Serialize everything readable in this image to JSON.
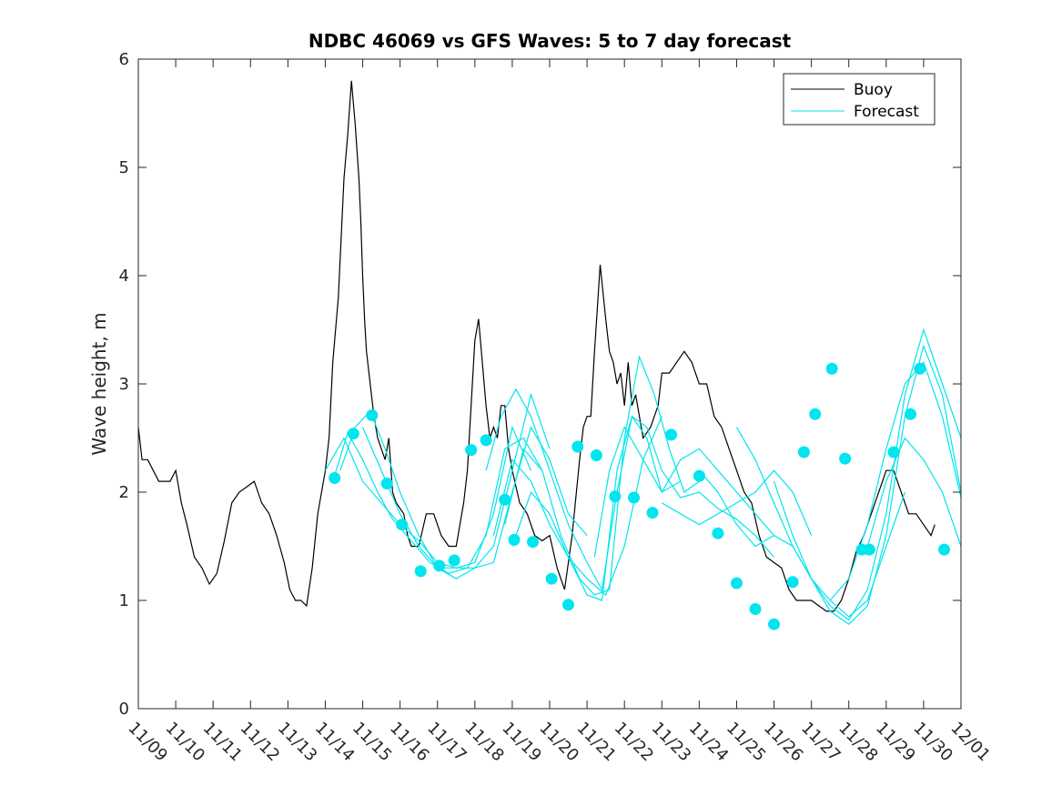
{
  "chart_data": {
    "type": "line",
    "title": "NDBC 46069 vs GFS Waves: 5 to 7 day forecast",
    "xlabel": "",
    "ylabel": "Wave height, m",
    "xlim": [
      0,
      22
    ],
    "ylim": [
      0,
      6
    ],
    "yticks": [
      0,
      1,
      2,
      3,
      4,
      5,
      6
    ],
    "xtick_labels": [
      "11/09",
      "11/10",
      "11/11",
      "11/12",
      "11/13",
      "11/14",
      "11/15",
      "11/16",
      "11/17",
      "11/18",
      "11/19",
      "11/20",
      "11/21",
      "11/22",
      "11/23",
      "11/24",
      "11/25",
      "11/26",
      "11/27",
      "11/28",
      "11/29",
      "11/30",
      "12/01"
    ],
    "legend": {
      "position": "top-right",
      "entries": [
        "Buoy",
        "Forecast"
      ]
    },
    "colors": {
      "buoy": "#000000",
      "forecast": "#00e5ee",
      "axis": "#262626"
    },
    "buoy": {
      "name": "Buoy",
      "x": [
        0,
        0.1,
        0.25,
        0.4,
        0.55,
        0.7,
        0.85,
        1.0,
        1.15,
        1.3,
        1.5,
        1.7,
        1.9,
        2.1,
        2.3,
        2.5,
        2.7,
        2.9,
        3.1,
        3.3,
        3.5,
        3.7,
        3.9,
        4.05,
        4.2,
        4.35,
        4.5,
        4.65,
        4.8,
        5.0,
        5.1,
        5.2,
        5.35,
        5.5,
        5.6,
        5.7,
        5.8,
        5.9,
        5.95,
        6.0,
        6.05,
        6.1,
        6.2,
        6.3,
        6.4,
        6.5,
        6.6,
        6.7,
        6.8,
        6.9,
        7.0,
        7.1,
        7.2,
        7.3,
        7.5,
        7.7,
        7.9,
        8.1,
        8.3,
        8.5,
        8.7,
        8.8,
        8.9,
        9.0,
        9.1,
        9.2,
        9.3,
        9.4,
        9.5,
        9.6,
        9.7,
        9.8,
        9.9,
        10.0,
        10.2,
        10.4,
        10.6,
        10.8,
        11.0,
        11.2,
        11.4,
        11.6,
        11.8,
        11.9,
        12.0,
        12.1,
        12.2,
        12.35,
        12.5,
        12.6,
        12.7,
        12.8,
        12.9,
        13.0,
        13.1,
        13.2,
        13.3,
        13.5,
        13.7,
        13.9,
        14.0,
        14.2,
        14.4,
        14.6,
        14.8,
        15.0,
        15.2,
        15.4,
        15.6,
        15.8,
        16.0,
        16.2,
        16.4,
        16.6,
        16.8,
        17.0,
        17.2,
        17.4,
        17.6,
        17.8,
        18.0,
        18.2,
        18.4,
        18.6,
        18.8,
        19.0,
        19.2,
        19.4,
        19.6,
        19.8,
        20.0,
        20.2,
        20.4,
        20.6,
        20.8,
        21.0,
        21.1,
        21.2,
        21.3
      ],
      "y": [
        2.6,
        2.3,
        2.3,
        2.2,
        2.1,
        2.1,
        2.1,
        2.2,
        1.9,
        1.7,
        1.4,
        1.3,
        1.15,
        1.25,
        1.55,
        1.9,
        2.0,
        2.05,
        2.1,
        1.9,
        1.8,
        1.6,
        1.35,
        1.1,
        1.0,
        1.0,
        0.95,
        1.3,
        1.8,
        2.2,
        2.5,
        3.2,
        3.8,
        4.9,
        5.3,
        5.8,
        5.4,
        4.9,
        4.5,
        4.0,
        3.6,
        3.3,
        3.0,
        2.7,
        2.5,
        2.4,
        2.3,
        2.5,
        2.0,
        1.9,
        1.85,
        1.8,
        1.6,
        1.5,
        1.5,
        1.8,
        1.8,
        1.6,
        1.5,
        1.5,
        1.9,
        2.2,
        2.8,
        3.4,
        3.6,
        3.2,
        2.8,
        2.5,
        2.6,
        2.5,
        2.8,
        2.8,
        2.4,
        2.2,
        1.9,
        1.8,
        1.6,
        1.55,
        1.6,
        1.3,
        1.1,
        1.6,
        2.3,
        2.6,
        2.7,
        2.7,
        3.3,
        4.1,
        3.6,
        3.3,
        3.2,
        3.0,
        3.1,
        2.8,
        3.2,
        2.8,
        2.9,
        2.5,
        2.6,
        2.8,
        3.1,
        3.1,
        3.2,
        3.3,
        3.2,
        3.0,
        3.0,
        2.7,
        2.6,
        2.4,
        2.2,
        2.0,
        1.9,
        1.6,
        1.4,
        1.35,
        1.3,
        1.1,
        1.0,
        1.0,
        1.0,
        0.95,
        0.9,
        0.9,
        1.0,
        1.2,
        1.45,
        1.6,
        1.8,
        2.0,
        2.2,
        2.2,
        2.0,
        1.8,
        1.8,
        1.7,
        1.65,
        1.6,
        1.7
      ]
    },
    "forecast_series": [
      {
        "name": "Forecast 1",
        "x": [
          5.0,
          5.5,
          6.0,
          6.5,
          7.0,
          7.5,
          8.0,
          8.5,
          9.0,
          9.5,
          10.0,
          10.5
        ],
        "y": [
          2.2,
          2.5,
          2.1,
          1.9,
          1.7,
          1.55,
          1.35,
          1.3,
          1.35,
          1.8,
          2.6,
          2.2
        ]
      },
      {
        "name": "Forecast 2",
        "x": [
          5.2,
          5.6,
          6.0,
          6.4,
          6.8,
          7.3,
          7.8,
          8.3,
          8.8,
          9.3,
          9.8,
          10.3,
          10.8
        ],
        "y": [
          2.1,
          2.55,
          2.3,
          2.0,
          1.75,
          1.55,
          1.35,
          1.25,
          1.3,
          1.6,
          2.4,
          2.5,
          2.2
        ]
      },
      {
        "name": "Forecast 3",
        "x": [
          5.4,
          5.8,
          6.2,
          6.6,
          7.0,
          7.5,
          8.0,
          8.5,
          9.0,
          9.5,
          10.0,
          10.5,
          11.0
        ],
        "y": [
          2.2,
          2.6,
          2.75,
          2.4,
          2.0,
          1.6,
          1.3,
          1.2,
          1.3,
          1.5,
          2.2,
          2.9,
          2.4
        ]
      },
      {
        "name": "Forecast 4",
        "x": [
          6.0,
          6.5,
          7.0,
          7.5,
          8.0,
          8.5,
          9.0,
          9.5,
          10.0,
          10.5,
          11.0,
          11.5,
          12.0
        ],
        "y": [
          2.6,
          2.2,
          1.8,
          1.5,
          1.3,
          1.3,
          1.3,
          1.35,
          2.0,
          2.6,
          2.3,
          1.8,
          1.6
        ]
      },
      {
        "name": "Forecast 5",
        "x": [
          9.3,
          9.7,
          10.1,
          10.5,
          11.0,
          11.5,
          12.0,
          12.4,
          12.8,
          13.2,
          13.6,
          14.0,
          14.5
        ],
        "y": [
          2.2,
          2.7,
          2.95,
          2.7,
          2.2,
          1.7,
          1.35,
          1.1,
          2.0,
          2.7,
          2.5,
          2.0,
          2.1
        ]
      },
      {
        "name": "Forecast 6",
        "x": [
          9.5,
          10.0,
          10.5,
          11.0,
          11.5,
          12.0,
          12.5,
          13.0,
          13.5,
          14.0
        ],
        "y": [
          1.6,
          2.3,
          2.1,
          1.7,
          1.4,
          1.2,
          1.05,
          1.5,
          2.3,
          2.7
        ]
      },
      {
        "name": "Forecast 7",
        "x": [
          9.8,
          10.3,
          10.8,
          11.3,
          11.8,
          12.2,
          12.6,
          13.0,
          13.4,
          13.8,
          14.2,
          14.6,
          15.0
        ],
        "y": [
          1.7,
          2.4,
          2.2,
          1.6,
          1.2,
          1.05,
          1.1,
          2.5,
          3.25,
          2.9,
          2.4,
          2.0,
          2.1
        ]
      },
      {
        "name": "Forecast 8",
        "x": [
          10.0,
          10.5,
          11.0,
          11.5,
          12.0,
          12.4,
          12.8,
          13.2,
          13.6,
          14.0,
          14.5,
          15.0,
          15.5,
          16.0,
          16.5,
          17.0
        ],
        "y": [
          1.5,
          2.0,
          1.8,
          1.4,
          1.05,
          1.0,
          2.2,
          2.7,
          2.6,
          2.2,
          1.95,
          2.0,
          1.85,
          1.75,
          1.6,
          1.4
        ]
      },
      {
        "name": "Forecast 9",
        "x": [
          12.2,
          12.6,
          13.0,
          13.5,
          14.0,
          14.5,
          15.0,
          15.5,
          16.0,
          16.5,
          17.0
        ],
        "y": [
          1.4,
          2.2,
          2.6,
          2.3,
          2.0,
          2.3,
          2.4,
          2.2,
          2.0,
          1.8,
          1.6
        ]
      },
      {
        "name": "Forecast 10",
        "x": [
          14.0,
          14.5,
          15.0,
          15.5,
          16.0,
          16.5,
          17.0,
          17.5,
          18.0
        ],
        "y": [
          1.9,
          1.8,
          1.7,
          1.8,
          1.9,
          2.0,
          2.2,
          2.0,
          1.6
        ]
      },
      {
        "name": "Forecast 11",
        "x": [
          15.0,
          15.5,
          16.0,
          16.5,
          17.0,
          17.5,
          18.0,
          18.5,
          19.0,
          19.5,
          20.0,
          20.5
        ],
        "y": [
          2.2,
          2.0,
          1.7,
          1.5,
          1.6,
          1.5,
          1.2,
          1.0,
          0.85,
          1.0,
          1.5,
          2.0
        ]
      },
      {
        "name": "Forecast 12",
        "x": [
          16.0,
          16.5,
          17.0,
          17.5,
          18.0,
          18.5,
          19.0,
          19.5,
          20.0,
          20.5,
          21.0,
          21.5,
          22.0
        ],
        "y": [
          2.6,
          2.3,
          1.9,
          1.5,
          1.2,
          0.95,
          0.82,
          1.1,
          1.8,
          2.9,
          3.5,
          3.0,
          2.5
        ]
      },
      {
        "name": "Forecast 13",
        "x": [
          17.0,
          17.5,
          18.0,
          18.5,
          19.0,
          19.5,
          20.0,
          20.5,
          21.0,
          21.5,
          22.0
        ],
        "y": [
          2.1,
          1.6,
          1.2,
          0.9,
          0.78,
          0.95,
          1.6,
          2.7,
          3.35,
          2.9,
          2.0
        ]
      },
      {
        "name": "Forecast 14",
        "x": [
          18.5,
          19.0,
          19.5,
          20.0,
          20.5,
          21.0,
          21.5,
          22.0
        ],
        "y": [
          1.0,
          1.2,
          1.7,
          2.4,
          3.0,
          3.2,
          2.7,
          1.95
        ]
      },
      {
        "name": "Forecast 15",
        "x": [
          19.5,
          20.0,
          20.5,
          21.0,
          21.5,
          22.0
        ],
        "y": [
          1.5,
          2.1,
          2.5,
          2.3,
          2.0,
          1.5
        ]
      }
    ],
    "forecast_markers": {
      "x": [
        5.25,
        5.75,
        6.25,
        6.65,
        7.05,
        7.55,
        8.05,
        8.45,
        8.9,
        9.3,
        9.8,
        10.05,
        10.55,
        11.05,
        11.5,
        11.75,
        12.25,
        12.75,
        13.25,
        13.75,
        14.25,
        15.0,
        15.5,
        16.0,
        16.5,
        17.0,
        17.5,
        17.8,
        18.1,
        18.55,
        18.9,
        19.35,
        19.55,
        20.2,
        20.65,
        20.9,
        21.55
      ],
      "y": [
        2.13,
        2.54,
        2.71,
        2.08,
        1.7,
        1.27,
        1.32,
        1.37,
        2.39,
        2.48,
        1.93,
        1.56,
        1.54,
        1.2,
        0.96,
        2.42,
        2.34,
        1.96,
        1.95,
        1.81,
        2.53,
        2.15,
        1.62,
        1.16,
        0.92,
        0.78,
        1.17,
        2.37,
        2.72,
        3.14,
        2.31,
        1.47,
        1.47,
        2.37,
        2.72,
        3.14,
        1.47
      ]
    }
  }
}
